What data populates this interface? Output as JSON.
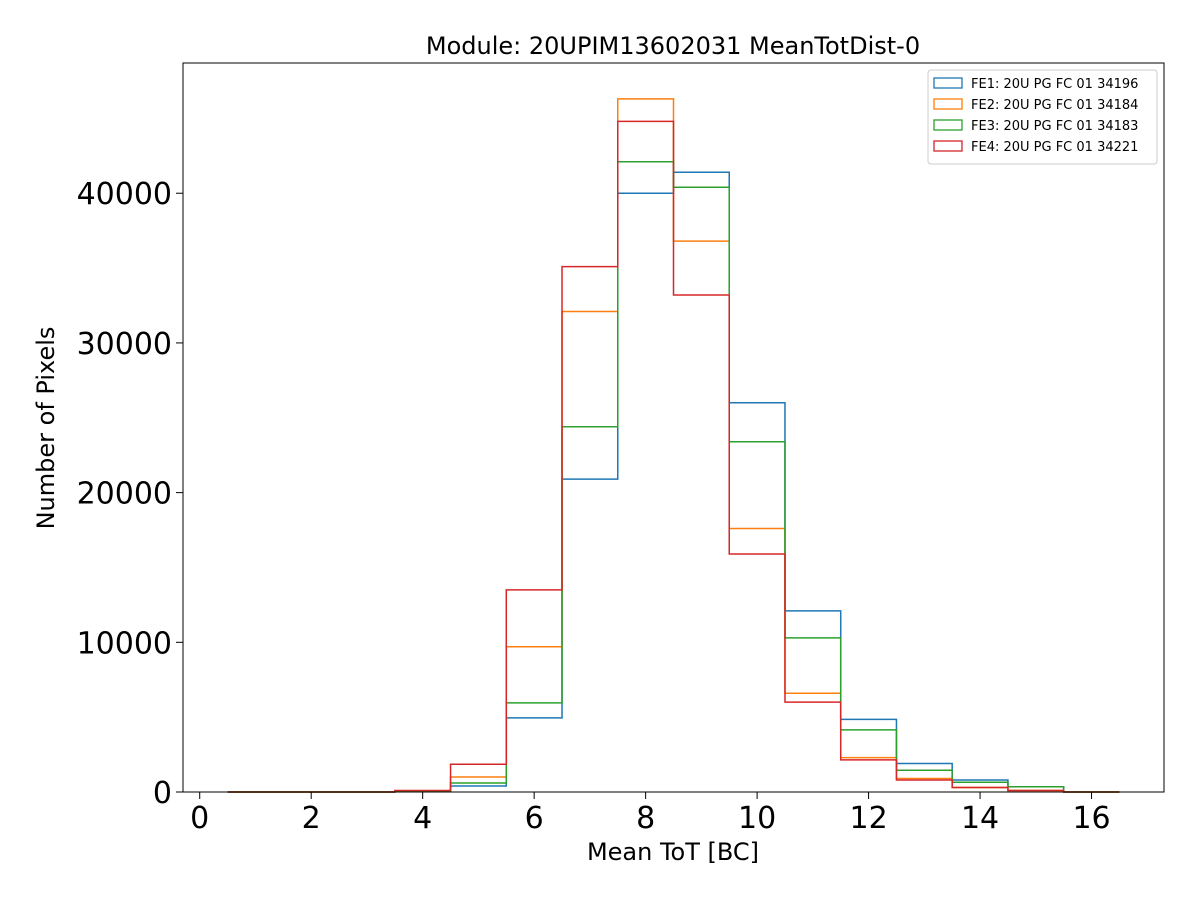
{
  "chart_data": {
    "type": "histogram",
    "title": "Module: 20UPIM13602031 MeanTotDist-0",
    "xlabel": "Mean ToT [BC]",
    "ylabel": "Number of Pixels",
    "xlim": [
      -0.3,
      17.3
    ],
    "ylim": [
      0,
      48700
    ],
    "x_ticks": [
      0,
      2,
      4,
      6,
      8,
      10,
      12,
      14,
      16
    ],
    "y_ticks": [
      0,
      10000,
      20000,
      30000,
      40000
    ],
    "bin_edges": [
      0.5,
      1.5,
      2.5,
      3.5,
      4.5,
      5.5,
      6.5,
      7.5,
      8.5,
      9.5,
      10.5,
      11.5,
      12.5,
      13.5,
      14.5,
      15.5,
      16.5
    ],
    "legend_position": "upper-right",
    "series": [
      {
        "name": "FE1: 20U PG FC 01 34196",
        "color": "#1f77b4",
        "values": [
          0,
          0,
          0,
          50,
          400,
          4950,
          20900,
          40000,
          41400,
          26000,
          12100,
          4850,
          1900,
          800,
          350,
          0
        ]
      },
      {
        "name": "FE2: 20U PG FC 01 34184",
        "color": "#ff7f0e",
        "values": [
          0,
          0,
          0,
          80,
          1000,
          9700,
          32100,
          46300,
          36800,
          17600,
          6600,
          2300,
          900,
          300,
          100,
          0
        ]
      },
      {
        "name": "FE3: 20U PG FC 01 34183",
        "color": "#2ca02c",
        "values": [
          0,
          0,
          0,
          50,
          600,
          5950,
          24400,
          42100,
          40400,
          23400,
          10300,
          4150,
          1450,
          650,
          350,
          0
        ]
      },
      {
        "name": "FE4: 20U PG FC 01 34221",
        "color": "#d62728",
        "values": [
          0,
          0,
          0,
          100,
          1850,
          13500,
          35100,
          44800,
          33200,
          15900,
          6000,
          2150,
          800,
          300,
          100,
          0
        ]
      }
    ]
  }
}
